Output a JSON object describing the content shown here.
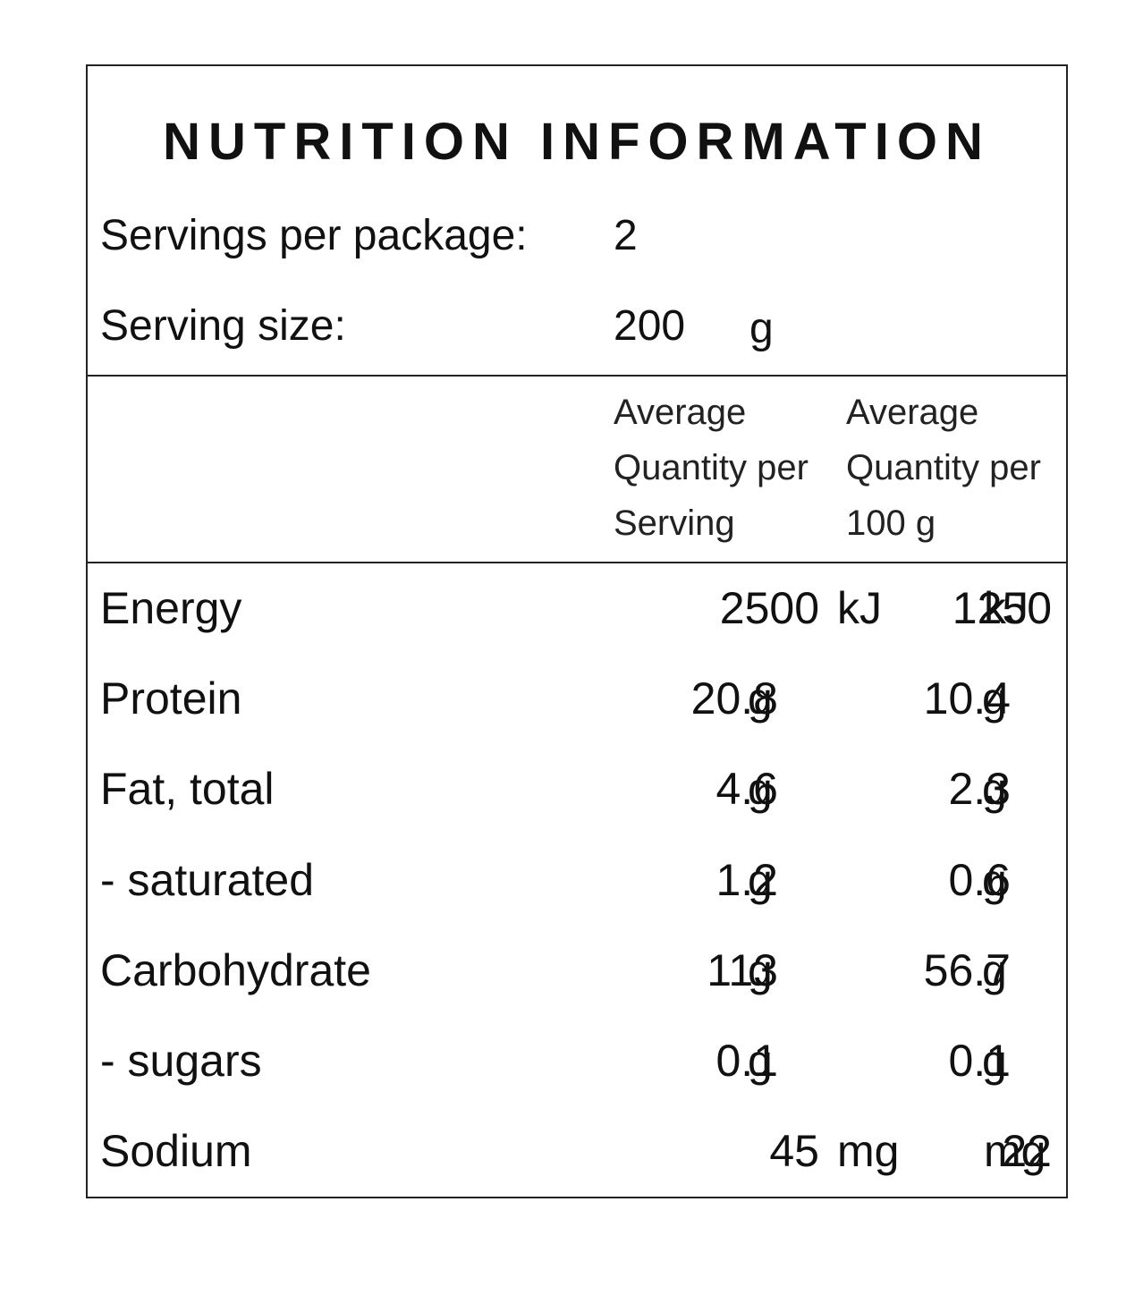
{
  "title": "NUTRITION INFORMATION",
  "servings": {
    "label": "Servings per package:",
    "value": "2"
  },
  "serving_size": {
    "label": "Serving size:",
    "value": "200",
    "unit": "g"
  },
  "table": {
    "headers": [
      "Average Quantity per Serving",
      "Average Quantity per 100 g"
    ],
    "rows": [
      [
        "Energy",
        "2500",
        "kJ",
        "1250",
        "kJ"
      ],
      [
        "Protein",
        "20.8",
        "g",
        "10.4",
        "g"
      ],
      [
        "Fat, total",
        "4.6",
        "g",
        "2.3",
        "g"
      ],
      [
        "- saturated",
        "1.2",
        "g",
        "0.6",
        "g"
      ],
      [
        "Carbohydrate",
        "113",
        "g",
        "56.7",
        "g"
      ],
      [
        "- sugars",
        "0.1",
        "g",
        "0.1",
        "g"
      ],
      [
        "Sodium",
        "45",
        "mg",
        "22",
        "mg"
      ]
    ]
  }
}
